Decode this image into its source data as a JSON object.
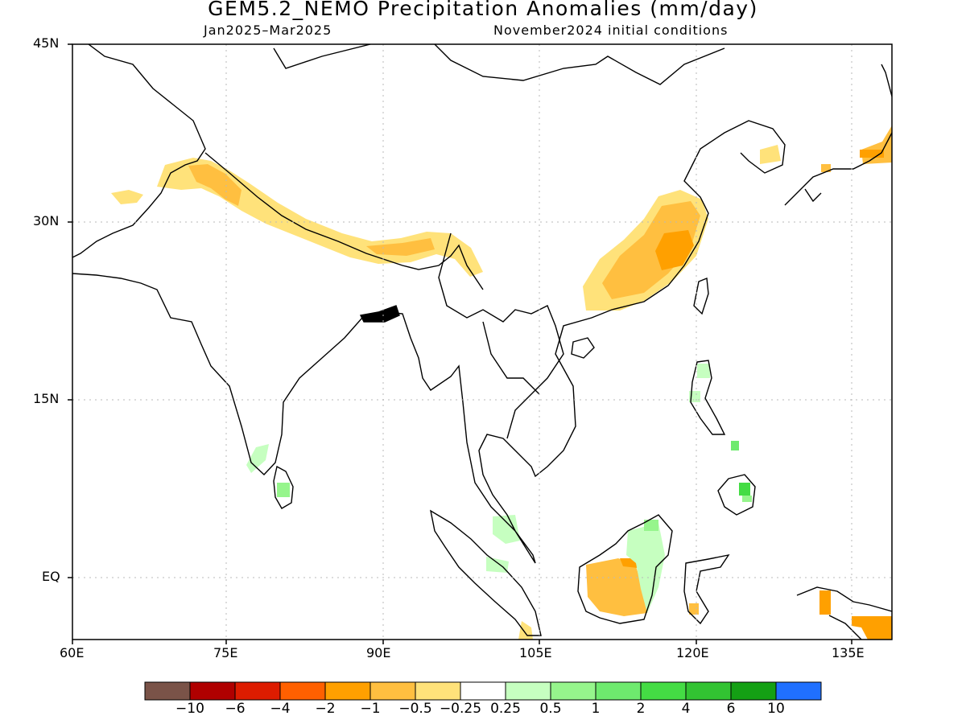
{
  "title": "GEM5.2_NEMO Precipitation Anomalies (mm/day)",
  "subtitle_left": "Jan2025–Mar2025",
  "subtitle_right": "November2024 initial conditions",
  "lat_labels": [
    "45N",
    "30N",
    "15N",
    "EQ"
  ],
  "lon_labels": [
    "60E",
    "75E",
    "90E",
    "105E",
    "120E",
    "135E"
  ],
  "colorbar": {
    "colors": [
      "#7a5348",
      "#b00000",
      "#dd1c00",
      "#ff6000",
      "#ffa000",
      "#ffbf40",
      "#ffe27a",
      "#ffffff",
      "#c6ffc0",
      "#96f58c",
      "#6eea6e",
      "#44dc44",
      "#32c332",
      "#14a014",
      "#2070ff"
    ],
    "labels": [
      "−10",
      "−6",
      "−4",
      "−2",
      "−1",
      "−0.5",
      "−0.25",
      "0.25",
      "0.5",
      "1",
      "2",
      "4",
      "6",
      "10"
    ]
  },
  "map": {
    "region": {
      "lon_min": 60,
      "lon_max": 140,
      "lat_min": -5,
      "lat_max": 45
    },
    "anomaly_areas": [
      {
        "name": "himalaya-dry-band",
        "value": -0.5
      },
      {
        "name": "karakoram-dry-core",
        "value": -1
      },
      {
        "name": "afghanistan-dry-patch",
        "value": -0.5
      },
      {
        "name": "south-china-dry-band",
        "value": -0.5
      },
      {
        "name": "south-china-dry-core",
        "value": -1
      },
      {
        "name": "fujian-dry-spot",
        "value": -2
      },
      {
        "name": "borneo-dry-area",
        "value": -1
      },
      {
        "name": "new-guinea-dry-area",
        "value": -2
      },
      {
        "name": "japan-dry-patch",
        "value": -1
      },
      {
        "name": "korea-dry-spot",
        "value": -0.5
      },
      {
        "name": "sri-lanka-wet-spot",
        "value": 0.5
      },
      {
        "name": "south-india-wet-spot",
        "value": 0.5
      },
      {
        "name": "sumatra-wet-patch",
        "value": 0.25
      },
      {
        "name": "borneo-wet-patch",
        "value": 0.5
      },
      {
        "name": "philippines-wet-spot",
        "value": 1
      },
      {
        "name": "mindanao-wet-spot",
        "value": 2
      }
    ]
  }
}
